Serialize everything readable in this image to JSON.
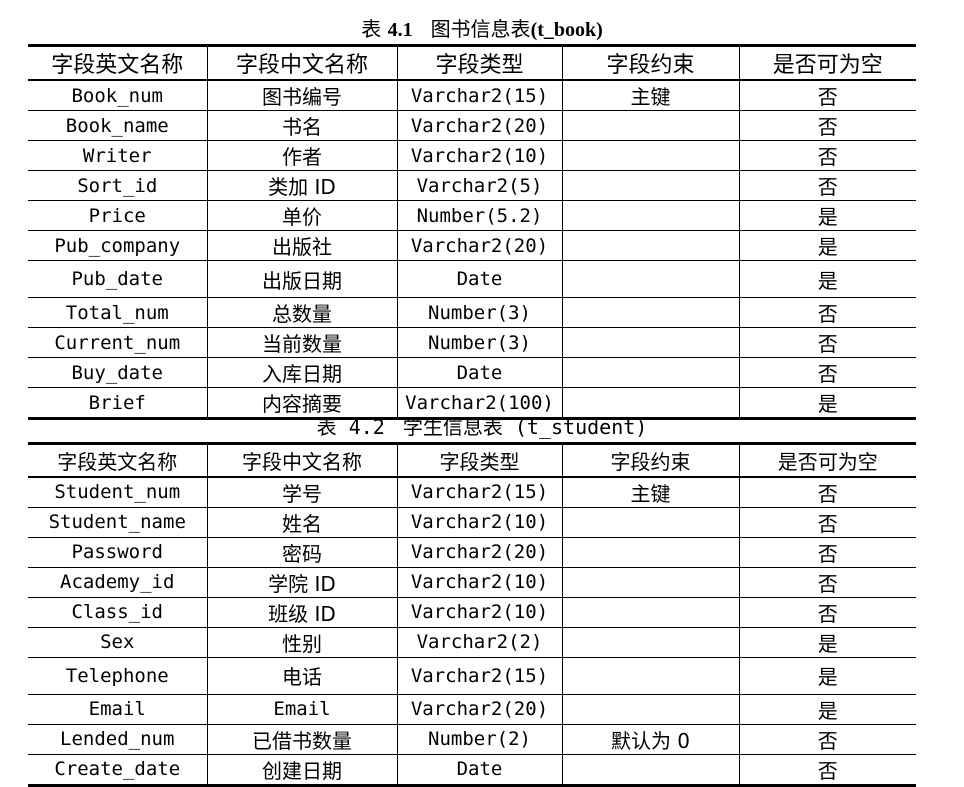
{
  "table1": {
    "caption": {
      "prefix": "表",
      "number": "4.1",
      "title_cn": "图书信息表",
      "title_en": "(t_book)"
    },
    "headers": [
      "字段英文名称",
      "字段中文名称",
      "字段类型",
      "字段约束",
      "是否可为空"
    ],
    "rows": [
      [
        "Book_num",
        "图书编号",
        "Varchar2(15)",
        "主键",
        "否"
      ],
      [
        "Book_name",
        "书名",
        "Varchar2(20)",
        "",
        "否"
      ],
      [
        "Writer",
        "作者",
        "Varchar2(10)",
        "",
        "否"
      ],
      [
        "Sort_id",
        "类加 ID",
        "Varchar2(5)",
        "",
        "否"
      ],
      [
        "Price",
        "单价",
        "Number(5.2)",
        "",
        "是"
      ],
      [
        "Pub_company",
        "出版社",
        "Varchar2(20)",
        "",
        "是"
      ],
      [
        "Pub_date",
        "出版日期",
        "Date",
        "",
        "是"
      ],
      [
        "Total_num",
        "总数量",
        "Number(3)",
        "",
        "否"
      ],
      [
        "Current_num",
        "当前数量",
        "Number(3)",
        "",
        "否"
      ],
      [
        "Buy_date",
        "入库日期",
        "Date",
        "",
        "否"
      ],
      [
        "Brief",
        "内容摘要",
        "Varchar2(100)",
        "",
        "是"
      ]
    ]
  },
  "table2": {
    "caption": {
      "prefix": "表",
      "number": "4.2",
      "title_cn": "学生信息表",
      "title_en": "(t_student)"
    },
    "headers": [
      "字段英文名称",
      "字段中文名称",
      "字段类型",
      "字段约束",
      "是否可为空"
    ],
    "rows": [
      [
        "Student_num",
        "学号",
        "Varchar2(15)",
        "主键",
        "否"
      ],
      [
        "Student_name",
        "姓名",
        "Varchar2(10)",
        "",
        "否"
      ],
      [
        "Password",
        "密码",
        "Varchar2(20)",
        "",
        "否"
      ],
      [
        "Academy_id",
        "学院 ID",
        "Varchar2(10)",
        "",
        "否"
      ],
      [
        "Class_id",
        "班级 ID",
        "Varchar2(10)",
        "",
        "否"
      ],
      [
        "Sex",
        "性别",
        "Varchar2(2)",
        "",
        "是"
      ],
      [
        "Telephone",
        "电话",
        "Varchar2(15)",
        "",
        "是"
      ],
      [
        "Email",
        "Email",
        "Varchar2(20)",
        "",
        "是"
      ],
      [
        "Lended_num",
        "已借书数量",
        "Number(2)",
        "默认为 0",
        "否"
      ],
      [
        "Create_date",
        "创建日期",
        "Date",
        "",
        "否"
      ]
    ]
  }
}
